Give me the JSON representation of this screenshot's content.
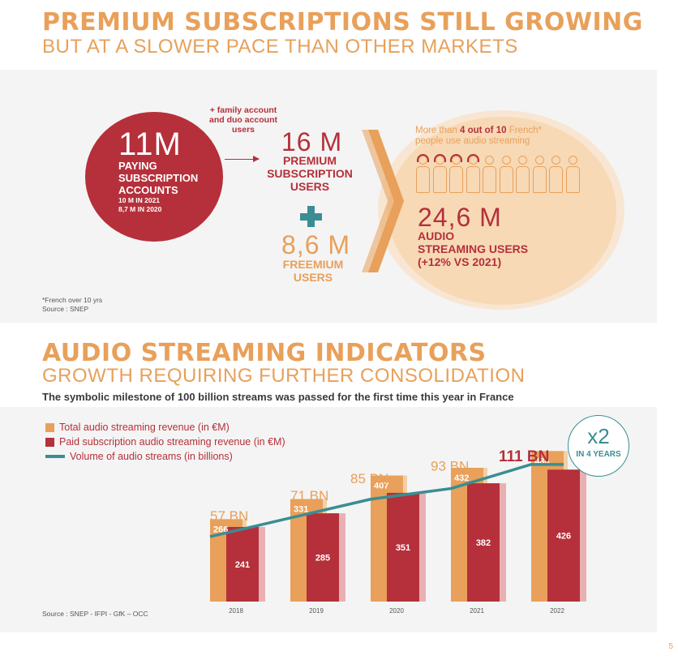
{
  "header1": {
    "title": "PREMIUM SUBSCRIPTIONS STILL GROWING",
    "subtitle": "BUT AT A SLOWER PACE THAN OTHER MARKETS"
  },
  "paying": {
    "value": "11M",
    "label_lines": [
      "PAYING",
      "SUBSCRIPTION",
      "ACCOUNTS"
    ],
    "history": [
      "10 M IN 2021",
      "8,7 M IN 2020"
    ]
  },
  "family_note": [
    "+ family account",
    "and duo account",
    "users"
  ],
  "premium": {
    "value": "16 M",
    "label_lines": [
      "PREMIUM",
      "SUBSCRIPTION",
      "USERS"
    ]
  },
  "freemium": {
    "value": "8,6 M",
    "label_lines": [
      "FREEMIUM",
      "USERS"
    ]
  },
  "audio_users": {
    "note_prefix": "More than ",
    "note_bold": "4 out of 10",
    "note_suffix": " French*",
    "note_line2": "people use audio streaming",
    "people_total": 10,
    "people_with_headphones": 4,
    "value": "24,6 M",
    "label_lines": [
      "AUDIO",
      "STREAMING USERS",
      "(+12% VS 2021)"
    ]
  },
  "notes_top": [
    "*French over 10 yrs",
    "Source : SNEP"
  ],
  "header2": {
    "title": "AUDIO STREAMING INDICATORS",
    "subtitle": "GROWTH REQUIRING FURTHER CONSOLIDATION",
    "tagline": "The symbolic milestone of 100 billion streams was passed for the first time this year in France"
  },
  "badge": {
    "big": "x2",
    "small": "IN 4 YEARS"
  },
  "source_bottom": "Source : SNEP - IFPI - GfK – OCC",
  "page_number": "5",
  "colors": {
    "orange": "#e8a05a",
    "red": "#b5303a",
    "teal": "#3a8d93",
    "peach": "#f7d9b6"
  },
  "chart_data": {
    "type": "bar",
    "categories": [
      "2018",
      "2019",
      "2020",
      "2021",
      "2022"
    ],
    "series": [
      {
        "name": "Total audio streaming revenue (in €M)",
        "type": "bar",
        "color": "#e8a05a",
        "values": [
          266,
          331,
          407,
          432,
          486
        ]
      },
      {
        "name": "Paid subscription audio streaming revenue (in €M)",
        "type": "bar",
        "color": "#b5303a",
        "values": [
          241,
          285,
          351,
          382,
          426
        ]
      },
      {
        "name": "Volume of audio streams (in billions)",
        "type": "line",
        "color": "#3a8d93",
        "values": [
          57,
          71,
          85,
          93,
          111
        ]
      }
    ],
    "line_labels": [
      "57 BN",
      "71 BN",
      "85 BN",
      "93 BN",
      "111 BN"
    ],
    "legend_position": "top-left",
    "grid": false
  }
}
